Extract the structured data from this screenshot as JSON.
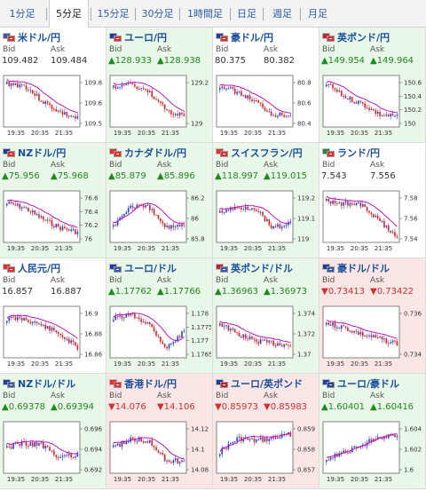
{
  "tabs": [
    "1分足",
    "5分足",
    "15分足",
    "30分足",
    "1時間足",
    "日足",
    "週足",
    "月足"
  ],
  "active_tab": 1,
  "colors": {
    "up": "#1f8a1f",
    "down": "#d03030",
    "link": "#1a4f9c",
    "ma_line": "#c000c0",
    "candle_up": "#2040e0",
    "candle_down": "#e02020"
  },
  "bid_label": "Bid",
  "ask_label": "Ask",
  "pairs": [
    {
      "name": "米ドル/円",
      "bid": "109.482",
      "ask": "109.484",
      "dir": "flat",
      "flag_icon": "us-jp-flag-icon",
      "flag_colors": [
        "#3c5aa8",
        "#e03030"
      ],
      "ticks": [
        "109.8",
        "109.6",
        "109.5"
      ],
      "times": [
        "19:35",
        "20:35",
        "21:35"
      ]
    },
    {
      "name": "ユーロ/円",
      "bid": "▲128.933",
      "ask": "▲128.938",
      "dir": "up",
      "flag_icon": "eu-jp-flag-icon",
      "flag_colors": [
        "#1f3fa0",
        "#e03030"
      ],
      "ticks": [
        "129.2",
        "129"
      ],
      "times": [
        "19:35",
        "20:35",
        "21:35"
      ]
    },
    {
      "name": "豪ドル/円",
      "bid": "80.375",
      "ask": "80.382",
      "dir": "flat",
      "flag_icon": "au-jp-flag-icon",
      "flag_colors": [
        "#1f3fa0",
        "#e03030"
      ],
      "ticks": [
        "80.8",
        "80.6",
        "80.4"
      ],
      "times": [
        "19:35",
        "20:35",
        "21:35"
      ]
    },
    {
      "name": "英ポンド/円",
      "bid": "▲149.954",
      "ask": "▲149.964",
      "dir": "up",
      "flag_icon": "gb-jp-flag-icon",
      "flag_colors": [
        "#c02030",
        "#e03030"
      ],
      "ticks": [
        "150.6",
        "150.4",
        "150.2",
        "150"
      ],
      "times": [
        "19:35",
        "20:35",
        "21:35"
      ]
    },
    {
      "name": "NZドル/円",
      "bid": "▲75.956",
      "ask": "▲75.968",
      "dir": "up",
      "flag_icon": "nz-jp-flag-icon",
      "flag_colors": [
        "#1f3fa0",
        "#e03030"
      ],
      "ticks": [
        "76.6",
        "76.4",
        "76.2",
        "76"
      ],
      "times": [
        "19:35",
        "20:35",
        "21:35"
      ]
    },
    {
      "name": "カナダドル/円",
      "bid": "▲85.879",
      "ask": "▲85.896",
      "dir": "up",
      "flag_icon": "ca-jp-flag-icon",
      "flag_colors": [
        "#e03030",
        "#e03030"
      ],
      "ticks": [
        "86.2",
        "86",
        "85.8"
      ],
      "times": [
        "19:35",
        "20:35",
        "21:35"
      ]
    },
    {
      "name": "スイスフラン/円",
      "bid": "▲118.997",
      "ask": "▲119.015",
      "dir": "up",
      "flag_icon": "ch-jp-flag-icon",
      "flag_colors": [
        "#e03030",
        "#e03030"
      ],
      "ticks": [
        "119.2",
        "119.1",
        "119"
      ],
      "times": [
        "19:35",
        "20:35",
        "21:35"
      ]
    },
    {
      "name": "ランド/円",
      "bid": "7.543",
      "ask": "7.556",
      "dir": "flat",
      "flag_icon": "za-jp-flag-icon",
      "flag_colors": [
        "#1f8a3f",
        "#e03030"
      ],
      "ticks": [
        "7.58",
        "7.56",
        "7.54"
      ],
      "times": [
        "19:35",
        "20:35",
        "21:35"
      ]
    },
    {
      "name": "人民元/円",
      "bid": "16.857",
      "ask": "16.887",
      "dir": "flat",
      "flag_icon": "cn-jp-flag-icon",
      "flag_colors": [
        "#e03030",
        "#e03030"
      ],
      "ticks": [
        "16.9",
        "16.88",
        "16.86"
      ],
      "times": [
        "19:35",
        "20:35",
        "21:35"
      ]
    },
    {
      "name": "ユーロ/ドル",
      "bid": "▲1.17762",
      "ask": "▲1.17766",
      "dir": "up",
      "flag_icon": "eu-us-flag-icon",
      "flag_colors": [
        "#1f3fa0",
        "#3c5aa8"
      ],
      "ticks": [
        "1.178",
        "1.1775",
        "1.177",
        "1.1765"
      ],
      "times": [
        "19:35",
        "20:35",
        "21:35"
      ]
    },
    {
      "name": "英ポンド/ドル",
      "bid": "▲1.36963",
      "ask": "▲1.36973",
      "dir": "up",
      "flag_icon": "gb-us-flag-icon",
      "flag_colors": [
        "#c02030",
        "#3c5aa8"
      ],
      "ticks": [
        "1.374",
        "1.372",
        "1.37"
      ],
      "times": [
        "19:35",
        "20:35",
        "21:35"
      ]
    },
    {
      "name": "豪ドル/ドル",
      "bid": "▼0.73413",
      "ask": "▼0.73422",
      "dir": "down",
      "flag_icon": "au-us-flag-icon",
      "flag_colors": [
        "#1f3fa0",
        "#3c5aa8"
      ],
      "ticks": [
        "0.736",
        "0.734"
      ],
      "times": [
        "19:35",
        "20:35",
        "21:35"
      ]
    },
    {
      "name": "NZドル/ドル",
      "bid": "▲0.69378",
      "ask": "▲0.69394",
      "dir": "up",
      "flag_icon": "nz-us-flag-icon",
      "flag_colors": [
        "#1f3fa0",
        "#3c5aa8"
      ],
      "ticks": [
        "0.696",
        "0.694",
        "0.692"
      ],
      "times": [
        "19:35",
        "20:35",
        "21:35"
      ]
    },
    {
      "name": "香港ドル/円",
      "bid": "▼14.076",
      "ask": "▼14.106",
      "dir": "down",
      "flag_icon": "hk-jp-flag-icon",
      "flag_colors": [
        "#e03030",
        "#e03030"
      ],
      "ticks": [
        "14.12",
        "14.1",
        "14.08"
      ],
      "times": [
        "19:35",
        "20:35",
        "21:35"
      ]
    },
    {
      "name": "ユーロ/英ポンド",
      "bid": "▼0.85973",
      "ask": "▼0.85983",
      "dir": "down",
      "flag_icon": "eu-gb-flag-icon",
      "flag_colors": [
        "#1f3fa0",
        "#c02030"
      ],
      "ticks": [
        "0.859",
        "0.858",
        "0.857"
      ],
      "times": [
        "19:35",
        "20:35",
        "21:35"
      ]
    },
    {
      "name": "ユーロ/豪ドル",
      "bid": "▲1.60401",
      "ask": "▲1.60416",
      "dir": "up",
      "flag_icon": "eu-au-flag-icon",
      "flag_colors": [
        "#1f3fa0",
        "#1f3fa0"
      ],
      "ticks": [
        "1.604",
        "1.602",
        "1.6"
      ],
      "times": [
        "19:35",
        "20:35",
        "21:35"
      ]
    }
  ]
}
